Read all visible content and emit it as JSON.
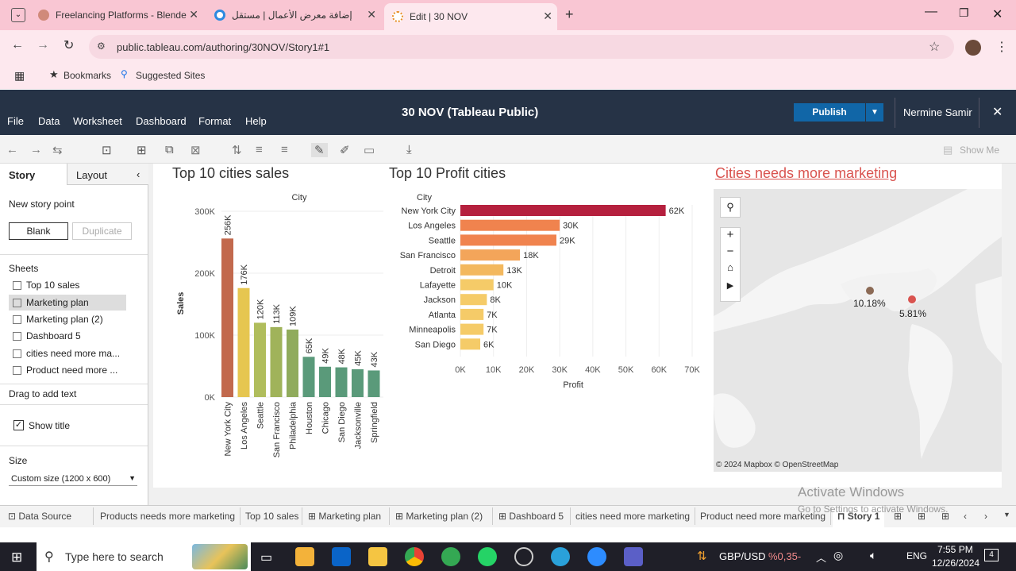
{
  "browser": {
    "tabs": [
      {
        "label": "Freelancing Platforms - Blende",
        "fav_color": "#d08a7a"
      },
      {
        "label": "إضافة معرض الأعمال | مستقل",
        "fav_color": "#2d8ae0"
      },
      {
        "label": "Edit | 30 NOV",
        "fav_color": "#e8902a"
      }
    ],
    "url": "public.tableau.com/authoring/30NOV/Story1#1",
    "bookmarks": [
      "Bookmarks",
      "Suggested Sites"
    ]
  },
  "tableau": {
    "title": "30 NOV (Tableau Public)",
    "menu": [
      "File",
      "Data",
      "Worksheet",
      "Dashboard",
      "Format",
      "Help"
    ],
    "publish_label": "Publish",
    "user_name": "Nermine Samir",
    "show_me": "Show Me"
  },
  "left_panel": {
    "tabs": [
      "Story",
      "Layout"
    ],
    "new_story_point": "New story point",
    "blank": "Blank",
    "duplicate": "Duplicate",
    "sheets_header": "Sheets",
    "sheets": [
      "Top 10 sales",
      "Marketing plan",
      "Marketing plan (2)",
      "Dashboard 5",
      "cities need more ma...",
      "Product need more ..."
    ],
    "drag_text": "Drag to add text",
    "show_title": "Show title",
    "size_header": "Size",
    "size_value": "Custom size (1200 x 600)"
  },
  "story": {
    "sales_title": "Top 10 cities sales",
    "profit_title": "Top 10 Profit cities",
    "map_title": "Cities needs more marketing",
    "map_attribution": "© 2024 Mapbox  © OpenStreetMap",
    "map_labels": [
      "10.18%",
      "5.81%"
    ]
  },
  "chart_data": [
    {
      "type": "bar",
      "title": "Top 10 cities sales",
      "xlabel": "City",
      "ylabel": "Sales",
      "categories": [
        "New York City",
        "Los Angeles",
        "Seattle",
        "San Francisco",
        "Philadelphia",
        "Houston",
        "Chicago",
        "San Diego",
        "Jacksonville",
        "Springfield"
      ],
      "values": [
        256,
        176,
        120,
        113,
        109,
        65,
        49,
        48,
        45,
        43
      ],
      "data_labels": [
        "256K",
        "176K",
        "120K",
        "113K",
        "109K",
        "65K",
        "49K",
        "48K",
        "45K",
        "43K"
      ],
      "colors": [
        "#c2694d",
        "#e6c650",
        "#b0bd5c",
        "#a0b35a",
        "#90ab5c",
        "#5a9a7a",
        "#5a9a7a",
        "#5a9a7a",
        "#5a9a7a",
        "#5a9a7a"
      ],
      "ylim": [
        0,
        300
      ],
      "yticks": [
        "0K",
        "100K",
        "200K",
        "300K"
      ]
    },
    {
      "type": "bar",
      "title": "Top 10 Profit cities",
      "xlabel": "Profit",
      "ylabel": "City",
      "categories": [
        "New York City",
        "Los Angeles",
        "Seattle",
        "San Francisco",
        "Detroit",
        "Lafayette",
        "Jackson",
        "Atlanta",
        "Minneapolis",
        "San Diego"
      ],
      "values": [
        62,
        30,
        29,
        18,
        13,
        10,
        8,
        7,
        7,
        6
      ],
      "data_labels": [
        "62K",
        "30K",
        "29K",
        "18K",
        "13K",
        "10K",
        "8K",
        "7K",
        "7K",
        "6K"
      ],
      "colors": [
        "#b5203e",
        "#f0834e",
        "#f0834e",
        "#f3a55a",
        "#f3b85e",
        "#f5cb68",
        "#f5cb68",
        "#f5cb68",
        "#f5cb68",
        "#f5cb68"
      ],
      "xlim": [
        0,
        70
      ],
      "xticks": [
        "0K",
        "10K",
        "20K",
        "30K",
        "40K",
        "50K",
        "60K",
        "70K"
      ]
    }
  ],
  "bottom_tabs": [
    "Data Source",
    "Products needs more marketing",
    "Top 10 sales",
    "Marketing plan",
    "Marketing plan (2)",
    "Dashboard 5",
    "cities need more marketing",
    "Product need more marketing",
    "Story 1"
  ],
  "watermark": {
    "line1": "Activate Windows",
    "line2": "Go to Settings to activate Windows."
  },
  "taskbar": {
    "search_placeholder": "Type here to search",
    "currency": "GBP/USD",
    "currency_change": "%0,35-",
    "lang": "ENG",
    "time": "7:55 PM",
    "date": "12/26/2024",
    "notifications": "4"
  }
}
